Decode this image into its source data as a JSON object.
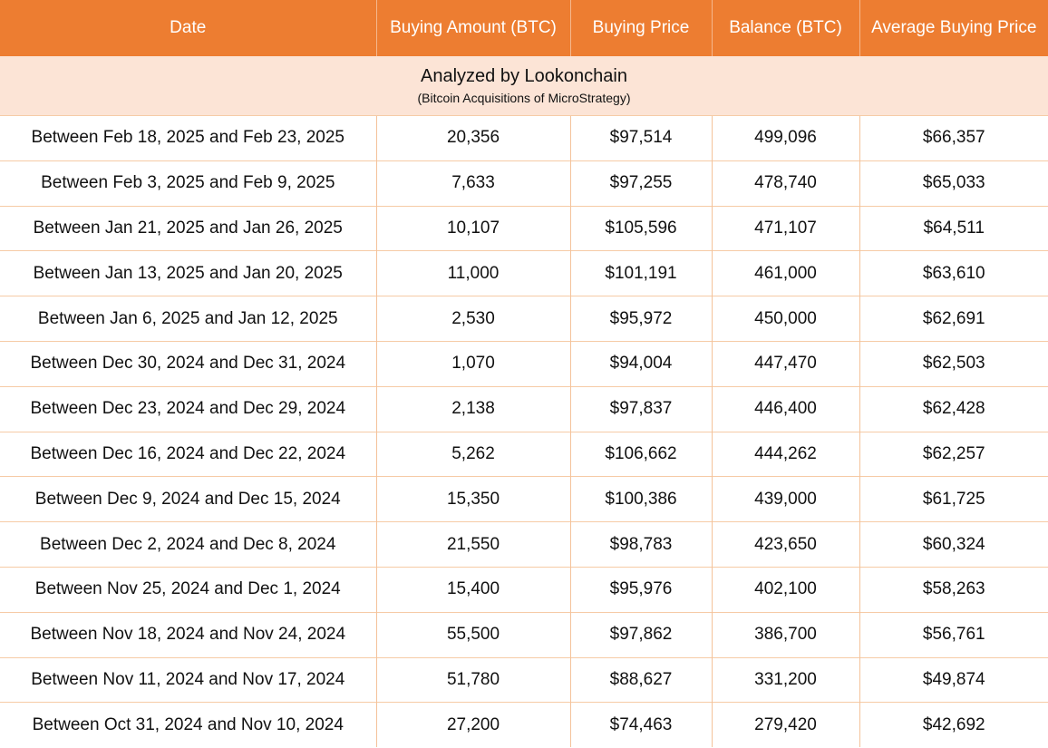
{
  "colors": {
    "header_bg": "#ed7d31",
    "header_text": "#ffffff",
    "subheader_bg": "#fce4d6",
    "grid_border": "#f6cba6",
    "row_bg": "#ffffff",
    "text": "#111111"
  },
  "chart_data": {
    "type": "table",
    "title": "Analyzed by Lookonchain",
    "subtitle": "(Bitcoin Acquisitions of MicroStrategy)",
    "legend_position": "none",
    "grid": true,
    "columns": [
      "Date",
      "Buying Amount (BTC)",
      "Buying Price",
      "Balance (BTC)",
      "Average Buying Price"
    ],
    "rows": [
      [
        "Between Feb 18, 2025 and Feb 23, 2025",
        "20,356",
        "$97,514",
        "499,096",
        "$66,357"
      ],
      [
        "Between Feb 3, 2025 and Feb 9, 2025",
        "7,633",
        "$97,255",
        "478,740",
        "$65,033"
      ],
      [
        "Between Jan 21, 2025 and Jan 26, 2025",
        "10,107",
        "$105,596",
        "471,107",
        "$64,511"
      ],
      [
        "Between Jan 13, 2025 and Jan 20, 2025",
        "11,000",
        "$101,191",
        "461,000",
        "$63,610"
      ],
      [
        "Between Jan 6, 2025 and Jan 12, 2025",
        "2,530",
        "$95,972",
        "450,000",
        "$62,691"
      ],
      [
        "Between Dec 30, 2024 and Dec 31, 2024",
        "1,070",
        "$94,004",
        "447,470",
        "$62,503"
      ],
      [
        "Between Dec 23, 2024 and Dec 29, 2024",
        "2,138",
        "$97,837",
        "446,400",
        "$62,428"
      ],
      [
        "Between Dec 16, 2024 and Dec 22, 2024",
        "5,262",
        "$106,662",
        "444,262",
        "$62,257"
      ],
      [
        "Between Dec 9, 2024 and Dec 15, 2024",
        "15,350",
        "$100,386",
        "439,000",
        "$61,725"
      ],
      [
        "Between Dec 2, 2024 and Dec 8, 2024",
        "21,550",
        "$98,783",
        "423,650",
        "$60,324"
      ],
      [
        "Between Nov 25, 2024 and Dec 1, 2024",
        "15,400",
        "$95,976",
        "402,100",
        "$58,263"
      ],
      [
        "Between Nov 18, 2024 and Nov 24, 2024",
        "55,500",
        "$97,862",
        "386,700",
        "$56,761"
      ],
      [
        "Between Nov 11, 2024 and Nov 17, 2024",
        "51,780",
        "$88,627",
        "331,200",
        "$49,874"
      ],
      [
        "Between Oct 31, 2024 and Nov 10, 2024",
        "27,200",
        "$74,463",
        "279,420",
        "$42,692"
      ]
    ]
  }
}
